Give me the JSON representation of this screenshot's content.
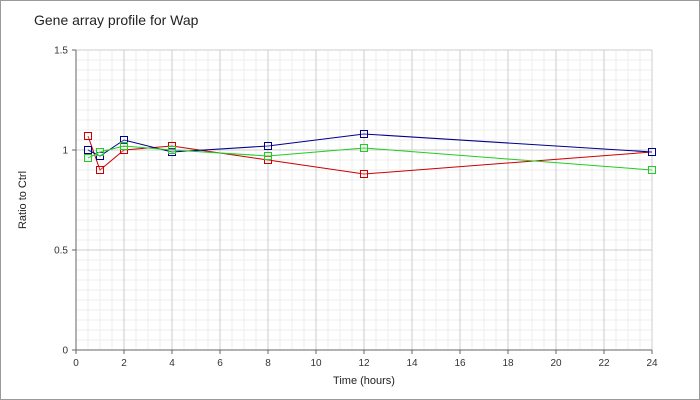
{
  "chart_data": {
    "type": "line",
    "title": "Gene array profile for Wap",
    "xlabel": "Time (hours)",
    "ylabel": "Ratio to Ctrl",
    "xlim": [
      0,
      24
    ],
    "ylim": [
      0,
      1.5
    ],
    "x_ticks": [
      0,
      2,
      4,
      6,
      8,
      10,
      12,
      14,
      16,
      18,
      20,
      22,
      24
    ],
    "x_tick_labels": [
      "0",
      "2",
      "4",
      "6",
      "8",
      "10",
      "12",
      "14",
      "16",
      "18",
      "20",
      "22",
      "24"
    ],
    "y_ticks": [
      0,
      0.5,
      1,
      1.5
    ],
    "y_tick_labels": [
      "0",
      "0.5",
      "1",
      "1.5"
    ],
    "grid": true,
    "legend": "none",
    "marker": "open-square",
    "x": [
      0.5,
      1,
      2,
      4,
      8,
      12,
      24
    ],
    "series": [
      {
        "color": "#cc0000",
        "values": [
          1.07,
          0.9,
          1.0,
          1.02,
          0.95,
          0.88,
          0.99
        ]
      },
      {
        "color": "#00008b",
        "values": [
          1.0,
          0.97,
          1.05,
          0.99,
          1.02,
          1.08,
          0.99
        ]
      },
      {
        "color": "#22cc22",
        "values": [
          0.96,
          0.99,
          1.02,
          1.0,
          0.97,
          1.01,
          0.9
        ]
      }
    ]
  }
}
